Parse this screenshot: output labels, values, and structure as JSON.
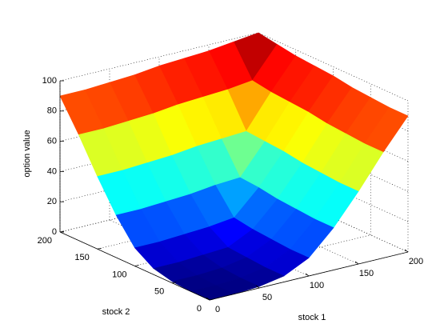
{
  "chart_data": {
    "type": "surface",
    "zlabel": "option value",
    "xlabel": "stock 1",
    "ylabel": "stock 2",
    "x": [
      0,
      25,
      50,
      75,
      100,
      125,
      150,
      175,
      200
    ],
    "y": [
      0,
      25,
      50,
      75,
      100,
      125,
      150,
      175,
      200
    ],
    "z": [
      [
        0,
        0,
        1,
        4,
        12,
        28,
        48,
        70,
        90
      ],
      [
        0,
        0,
        1,
        4,
        12,
        28,
        48,
        70,
        90
      ],
      [
        1,
        1,
        2,
        5,
        13,
        29,
        49,
        71,
        91
      ],
      [
        4,
        4,
        5,
        6,
        14,
        30,
        50,
        72,
        92
      ],
      [
        12,
        12,
        13,
        14,
        16,
        32,
        52,
        74,
        94
      ],
      [
        28,
        28,
        29,
        30,
        32,
        33,
        53,
        75,
        95
      ],
      [
        48,
        48,
        49,
        50,
        52,
        53,
        54,
        76,
        96
      ],
      [
        70,
        70,
        71,
        72,
        74,
        75,
        76,
        78,
        98
      ],
      [
        90,
        90,
        91,
        92,
        94,
        95,
        96,
        98,
        100
      ]
    ],
    "xlim": [
      0,
      200
    ],
    "xticks": [
      0,
      50,
      100,
      150,
      200
    ],
    "ylim": [
      0,
      200
    ],
    "yticks": [
      0,
      50,
      100,
      150,
      200
    ],
    "zlim": [
      0,
      100
    ],
    "zticks": [
      0,
      20,
      40,
      60,
      80,
      100
    ],
    "colormap": "jet",
    "grid": true
  }
}
